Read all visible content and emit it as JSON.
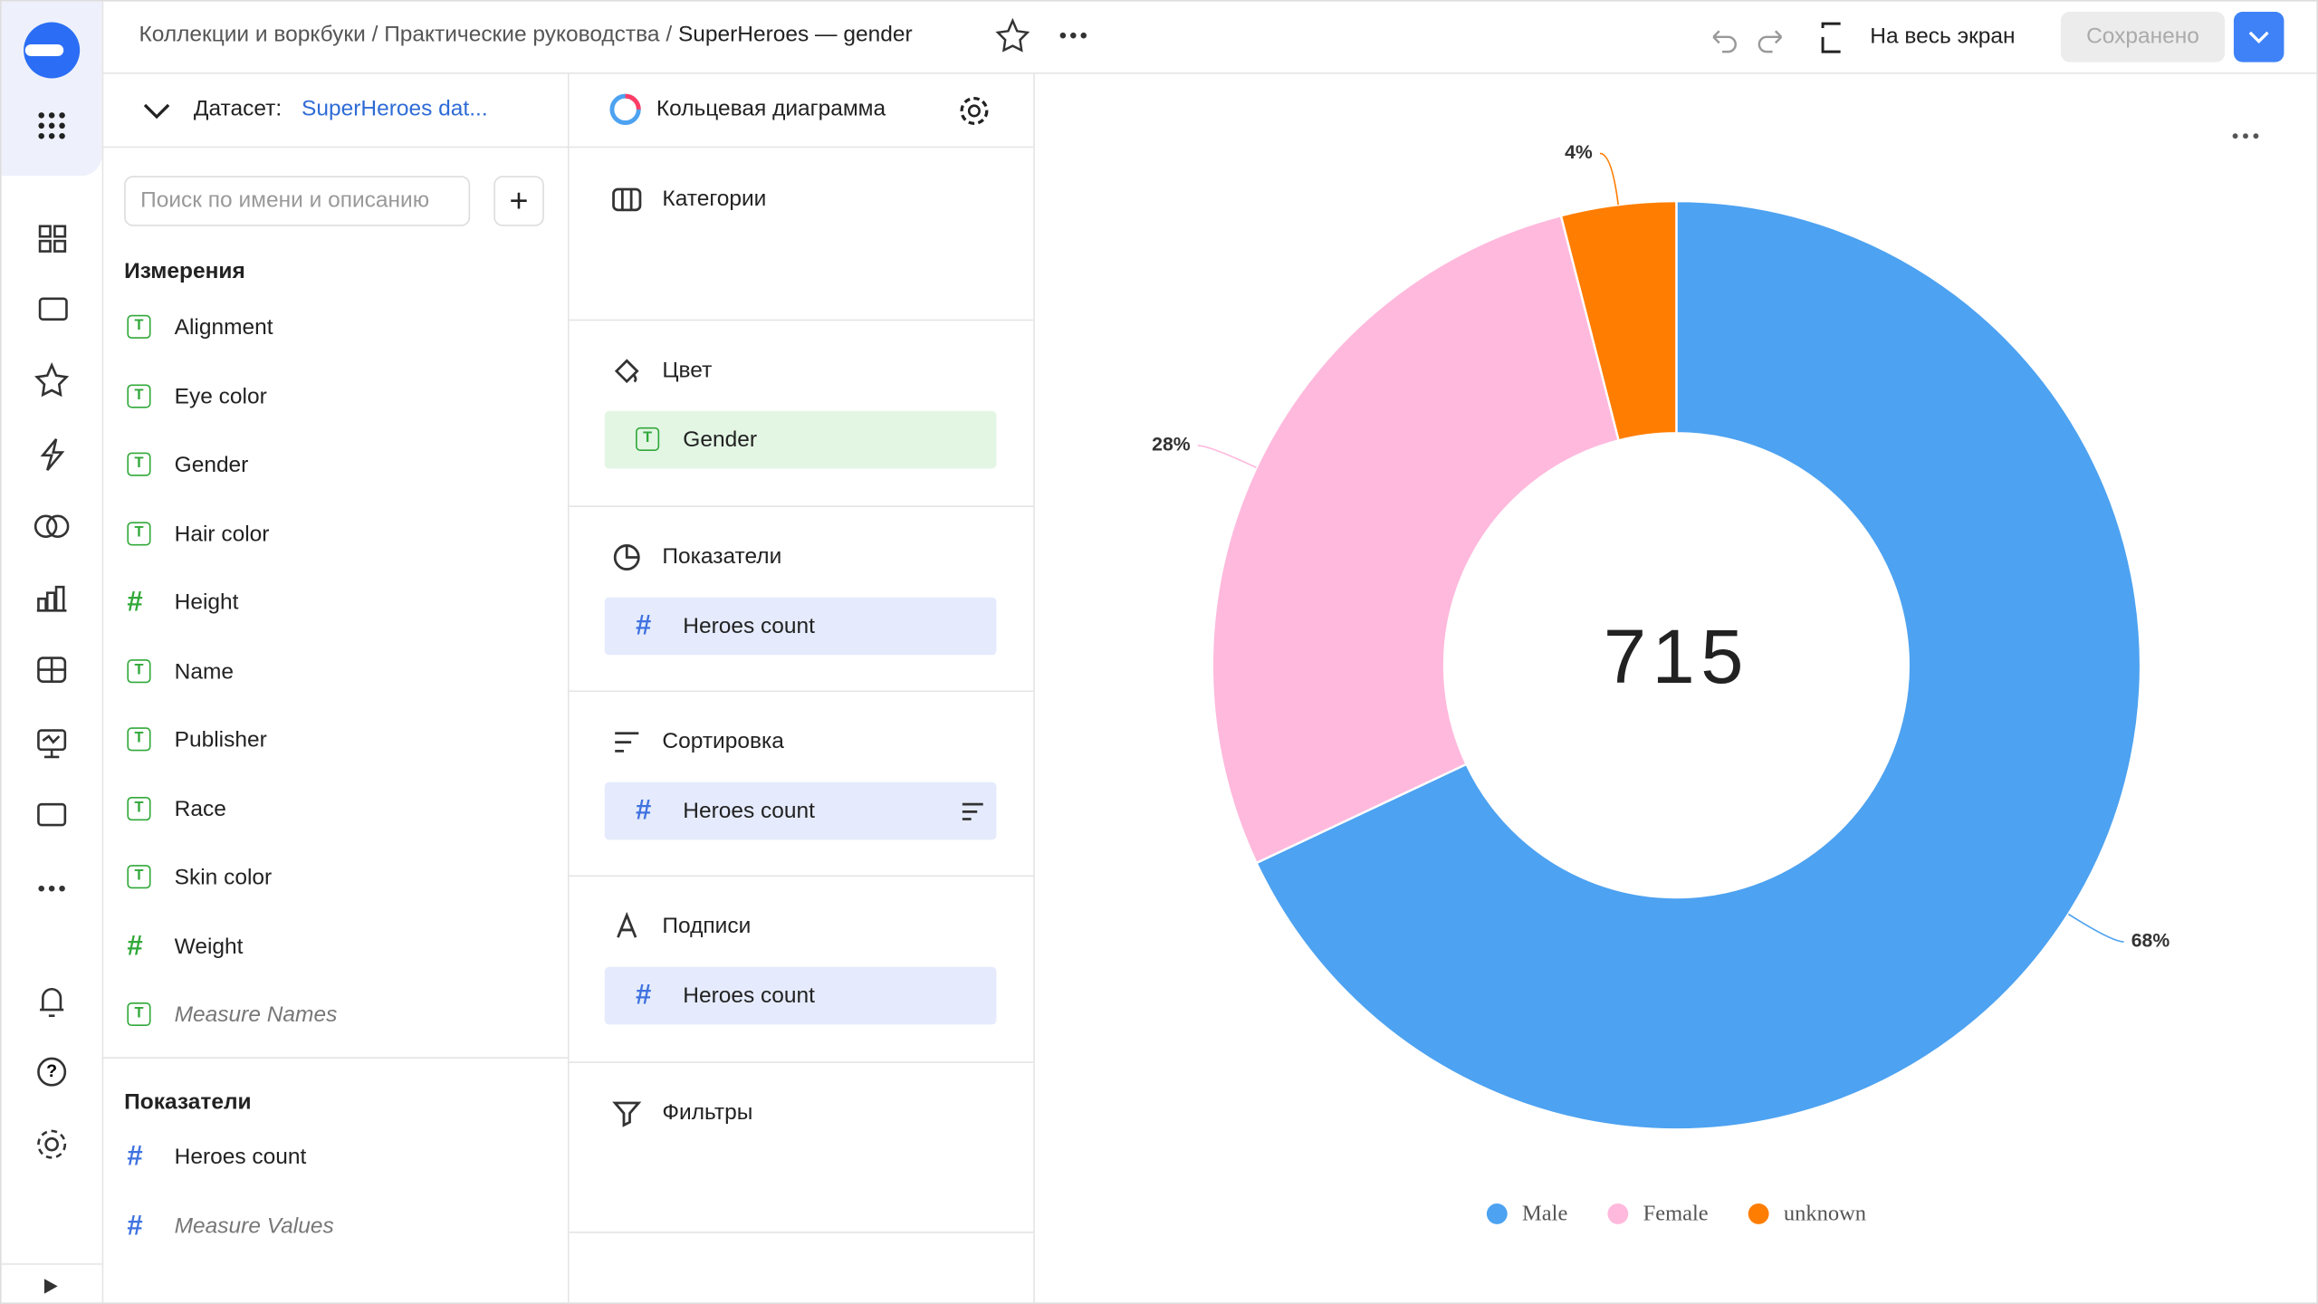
{
  "header": {
    "breadcrumbs": [
      "Коллекции и воркбуки",
      "Практические руководства",
      "SuperHeroes — gender"
    ],
    "fullscreen": "На весь экран",
    "saved": "Сохранено"
  },
  "dataset": {
    "label": "Датасет:",
    "name": "SuperHeroes dat...",
    "search_placeholder": "Поиск по имени и описанию",
    "dimensions_title": "Измерения",
    "dimensions": [
      {
        "name": "Alignment",
        "icon": "T"
      },
      {
        "name": "Eye color",
        "icon": "T"
      },
      {
        "name": "Gender",
        "icon": "T"
      },
      {
        "name": "Hair color",
        "icon": "T"
      },
      {
        "name": "Height",
        "icon": "#"
      },
      {
        "name": "Name",
        "icon": "T"
      },
      {
        "name": "Publisher",
        "icon": "T"
      },
      {
        "name": "Race",
        "icon": "T"
      },
      {
        "name": "Skin color",
        "icon": "T"
      },
      {
        "name": "Weight",
        "icon": "#"
      },
      {
        "name": "Measure Names",
        "icon": "T",
        "italic": true
      }
    ],
    "measures_title": "Показатели",
    "measures": [
      {
        "name": "Heroes count",
        "icon": "#"
      },
      {
        "name": "Measure Values",
        "icon": "#",
        "italic": true
      }
    ]
  },
  "editor": {
    "chart_type": "Кольцевая диаграмма",
    "sections": [
      {
        "title": "Категории"
      },
      {
        "title": "Цвет",
        "items": [
          {
            "name": "Gender",
            "icon": "T"
          }
        ]
      },
      {
        "title": "Показатели",
        "items": [
          {
            "name": "Heroes count",
            "icon": "#"
          }
        ]
      },
      {
        "title": "Сортировка",
        "items": [
          {
            "name": "Heroes count",
            "icon": "#"
          }
        ]
      },
      {
        "title": "Подписи",
        "items": [
          {
            "name": "Heroes count",
            "icon": "#"
          }
        ]
      },
      {
        "title": "Фильтры"
      }
    ]
  },
  "chart_data": {
    "type": "pie",
    "donut": true,
    "total": 715,
    "categories": [
      "Male",
      "Female",
      "unknown"
    ],
    "values": [
      68,
      28,
      4
    ],
    "value_labels": [
      "68%",
      "28%",
      "4%"
    ],
    "colors": [
      "#4da2f1",
      "#ffb9dd",
      "#ff7d00"
    ],
    "legend": "bottom"
  }
}
